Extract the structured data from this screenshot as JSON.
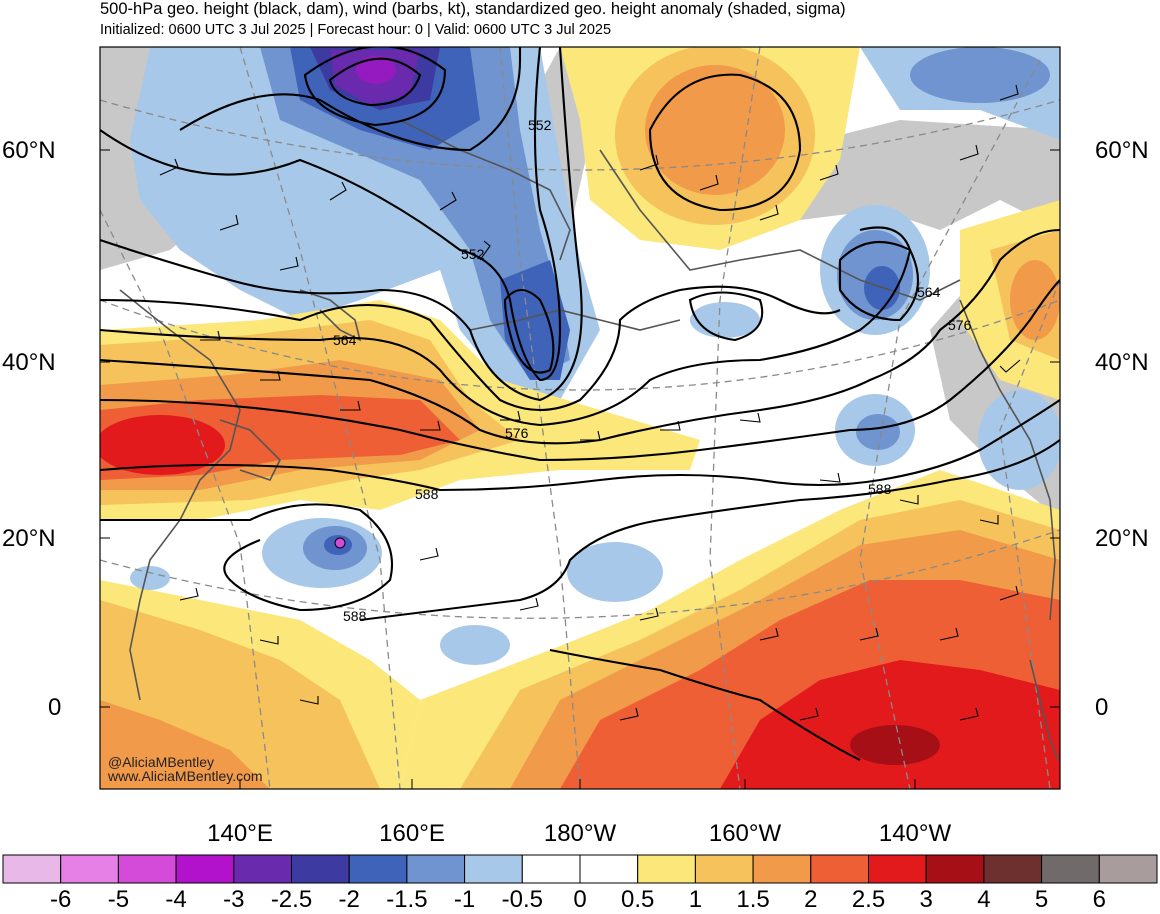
{
  "header": {
    "title": "500-hPa geo. height (black, dam), wind (barbs, kt), standardized geo. height anomaly (shaded, sigma)",
    "subtitle": "Initialized: 0600 UTC 3 Jul 2025 | Forecast hour: 0 | Valid: 0600 UTC 3 Jul 2025"
  },
  "axes": {
    "lat_left": [
      "60°N",
      "40°N",
      "20°N",
      "0"
    ],
    "lat_right": [
      "60°N",
      "40°N",
      "20°N",
      "0"
    ],
    "lon_bottom": [
      "140°E",
      "160°E",
      "180°W",
      "160°W",
      "140°W"
    ]
  },
  "contour_labels": [
    "552",
    "552",
    "564",
    "564",
    "576",
    "576",
    "588",
    "588",
    "588"
  ],
  "watermark": {
    "handle": "@AliciaMBentley",
    "site": "www.AliciaMBentley.com"
  },
  "colorbar": {
    "ticks": [
      "-6",
      "-5",
      "-4",
      "-3",
      "-2.5",
      "-2",
      "-1.5",
      "-1",
      "-0.5",
      "0",
      "0.5",
      "1",
      "1.5",
      "2",
      "2.5",
      "3",
      "4",
      "5",
      "6"
    ],
    "colors": [
      "#e8b8e8",
      "#e67fe6",
      "#d54bd9",
      "#b212cc",
      "#6a2aae",
      "#3d3ba1",
      "#3f63b8",
      "#6f94cf",
      "#a7c8e8",
      "#ffffff",
      "#ffffff",
      "#fbe77a",
      "#f5c25c",
      "#f19a4a",
      "#ee5f35",
      "#e21a1c",
      "#a50f15",
      "#6e2f2f",
      "#716a6a",
      "#a89c9c"
    ]
  },
  "colors": {
    "land_gray": "#c8c8c8",
    "coast": "#555555",
    "grid": "#8a8a8a",
    "contour": "#000000"
  }
}
